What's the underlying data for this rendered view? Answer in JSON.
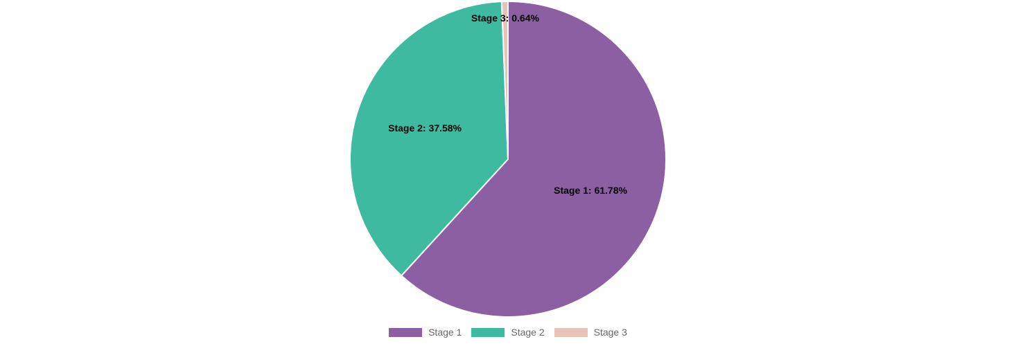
{
  "chart_data": {
    "type": "pie",
    "categories": [
      "Stage 1",
      "Stage 2",
      "Stage 3"
    ],
    "values": [
      61.78,
      37.58,
      0.64
    ],
    "data_labels": [
      "Stage 1: 61.78%",
      "Stage 2: 37.58%",
      "Stage 3: 0.64%"
    ],
    "colors": [
      "#8c5ea2",
      "#3dba9f",
      "#e8c3b9"
    ],
    "legend_position": "bottom"
  },
  "legend": {
    "items": [
      {
        "label": "Stage 1",
        "color": "#8c5ea2"
      },
      {
        "label": "Stage 2",
        "color": "#3dba9f"
      },
      {
        "label": "Stage 3",
        "color": "#e8c3b9"
      }
    ]
  }
}
